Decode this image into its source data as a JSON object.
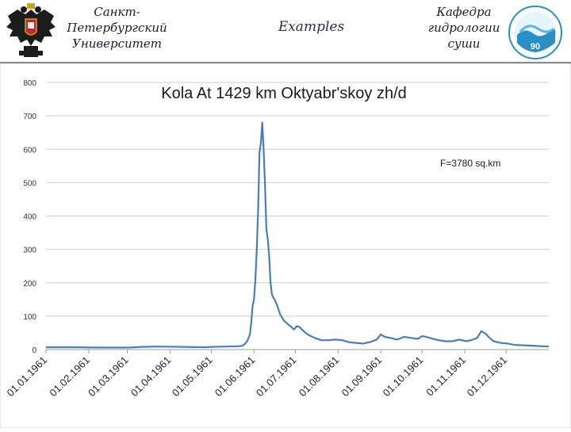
{
  "header": {
    "left_lines": [
      "Санкт-",
      "Петербургский",
      "Университет"
    ],
    "title": "Examples",
    "right_lines": [
      "Кафедра",
      "гидрологии",
      "суши"
    ],
    "right_logo_text": "90"
  },
  "chart_data": {
    "type": "line",
    "title": "Kola At 1429 km Oktyabr'skoy zh/d",
    "annotation": "F=3780 sq.km",
    "xlabel": "",
    "ylabel": "",
    "ylim": [
      0,
      800
    ],
    "yticks": [
      0,
      100,
      200,
      300,
      400,
      500,
      600,
      700,
      800
    ],
    "grid": true,
    "x_tick_labels": [
      "01.01.1961",
      "01.02.1961",
      "01.03.1961",
      "01.04.1961",
      "01.05.1961",
      "01.06.1961",
      "01.07.1961",
      "01.08.1961",
      "01.09.1961",
      "01.10.1961",
      "01.11.1961",
      "01.12.1961"
    ],
    "x_tick_days": [
      0,
      31,
      59,
      90,
      120,
      151,
      181,
      212,
      243,
      273,
      304,
      334
    ],
    "x_max_day": 365,
    "series": [
      {
        "color": "#4a7ebb",
        "points": [
          [
            0,
            7
          ],
          [
            20,
            7
          ],
          [
            40,
            6
          ],
          [
            50,
            6
          ],
          [
            60,
            6
          ],
          [
            70,
            8
          ],
          [
            80,
            9
          ],
          [
            100,
            8
          ],
          [
            115,
            7
          ],
          [
            120,
            8
          ],
          [
            130,
            9
          ],
          [
            140,
            10
          ],
          [
            142,
            11
          ],
          [
            144,
            15
          ],
          [
            146,
            25
          ],
          [
            148,
            45
          ],
          [
            149,
            80
          ],
          [
            150,
            130
          ],
          [
            151,
            150
          ],
          [
            152,
            210
          ],
          [
            153,
            300
          ],
          [
            154,
            420
          ],
          [
            155,
            590
          ],
          [
            156,
            620
          ],
          [
            157,
            680
          ],
          [
            158,
            600
          ],
          [
            159,
            490
          ],
          [
            160,
            360
          ],
          [
            161,
            330
          ],
          [
            162,
            280
          ],
          [
            163,
            200
          ],
          [
            164,
            165
          ],
          [
            165,
            155
          ],
          [
            166,
            150
          ],
          [
            168,
            130
          ],
          [
            170,
            105
          ],
          [
            173,
            85
          ],
          [
            176,
            75
          ],
          [
            178,
            68
          ],
          [
            180,
            60
          ],
          [
            182,
            70
          ],
          [
            184,
            68
          ],
          [
            187,
            55
          ],
          [
            190,
            45
          ],
          [
            195,
            35
          ],
          [
            200,
            28
          ],
          [
            205,
            28
          ],
          [
            210,
            30
          ],
          [
            215,
            28
          ],
          [
            220,
            22
          ],
          [
            225,
            20
          ],
          [
            230,
            18
          ],
          [
            235,
            22
          ],
          [
            240,
            30
          ],
          [
            243,
            45
          ],
          [
            246,
            38
          ],
          [
            250,
            35
          ],
          [
            255,
            30
          ],
          [
            260,
            38
          ],
          [
            265,
            35
          ],
          [
            270,
            32
          ],
          [
            273,
            40
          ],
          [
            276,
            38
          ],
          [
            280,
            33
          ],
          [
            285,
            28
          ],
          [
            290,
            25
          ],
          [
            295,
            25
          ],
          [
            300,
            30
          ],
          [
            305,
            25
          ],
          [
            310,
            30
          ],
          [
            313,
            35
          ],
          [
            316,
            55
          ],
          [
            319,
            48
          ],
          [
            322,
            35
          ],
          [
            325,
            25
          ],
          [
            330,
            20
          ],
          [
            335,
            18
          ],
          [
            340,
            14
          ],
          [
            345,
            13
          ],
          [
            350,
            12
          ],
          [
            355,
            11
          ],
          [
            360,
            10
          ],
          [
            365,
            9
          ]
        ]
      }
    ]
  }
}
